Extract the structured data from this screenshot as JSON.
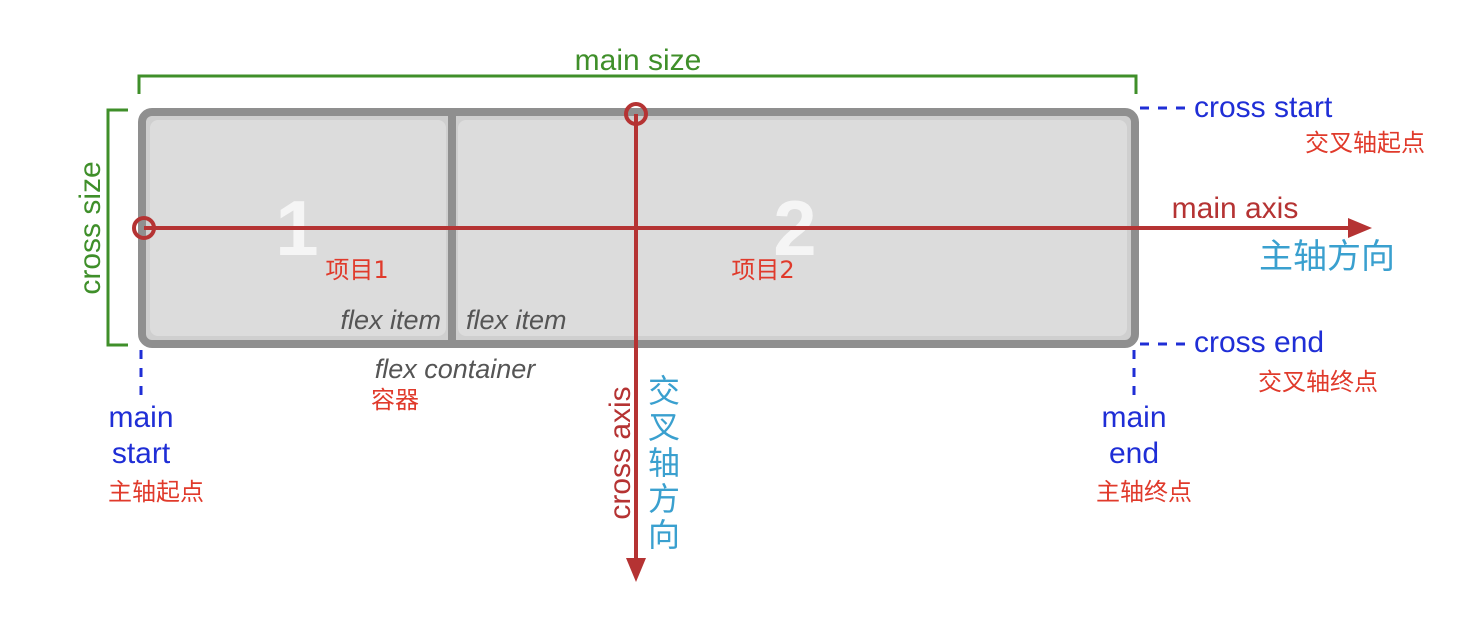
{
  "labels": {
    "main_size": "main size",
    "cross_size": "cross size",
    "cross_start": "cross start",
    "cross_start_cn": "交叉轴起点",
    "main_axis": "main axis",
    "main_axis_cn": "主轴方向",
    "cross_end": "cross end",
    "cross_end_cn": "交叉轴终点",
    "main_start_line1": "main",
    "main_start_line2": "start",
    "main_start_cn": "主轴起点",
    "main_end_line1": "main",
    "main_end_line2": "end",
    "main_end_cn": "主轴终点",
    "flex_container": "flex container",
    "flex_container_cn": "容器",
    "cross_axis": "cross axis",
    "cross_axis_cn_1": "交",
    "cross_axis_cn_2": "叉",
    "cross_axis_cn_3": "轴",
    "cross_axis_cn_4": "方",
    "cross_axis_cn_5": "向"
  },
  "items": [
    {
      "number": "1",
      "flex_label": "flex item",
      "cn_label": "项目1"
    },
    {
      "number": "2",
      "flex_label": "flex item",
      "cn_label": "项目2"
    }
  ],
  "colors": {
    "green": "#3f8f2a",
    "blue": "#1f2ed6",
    "red_axis": "#b53333",
    "red_text": "#e03a2b",
    "cyan": "#3aa0cf",
    "container_border": "#8f8f8f",
    "item_fill": "#dcdcdc",
    "item_number": "#f5f5f5",
    "flex_text": "#555555"
  }
}
